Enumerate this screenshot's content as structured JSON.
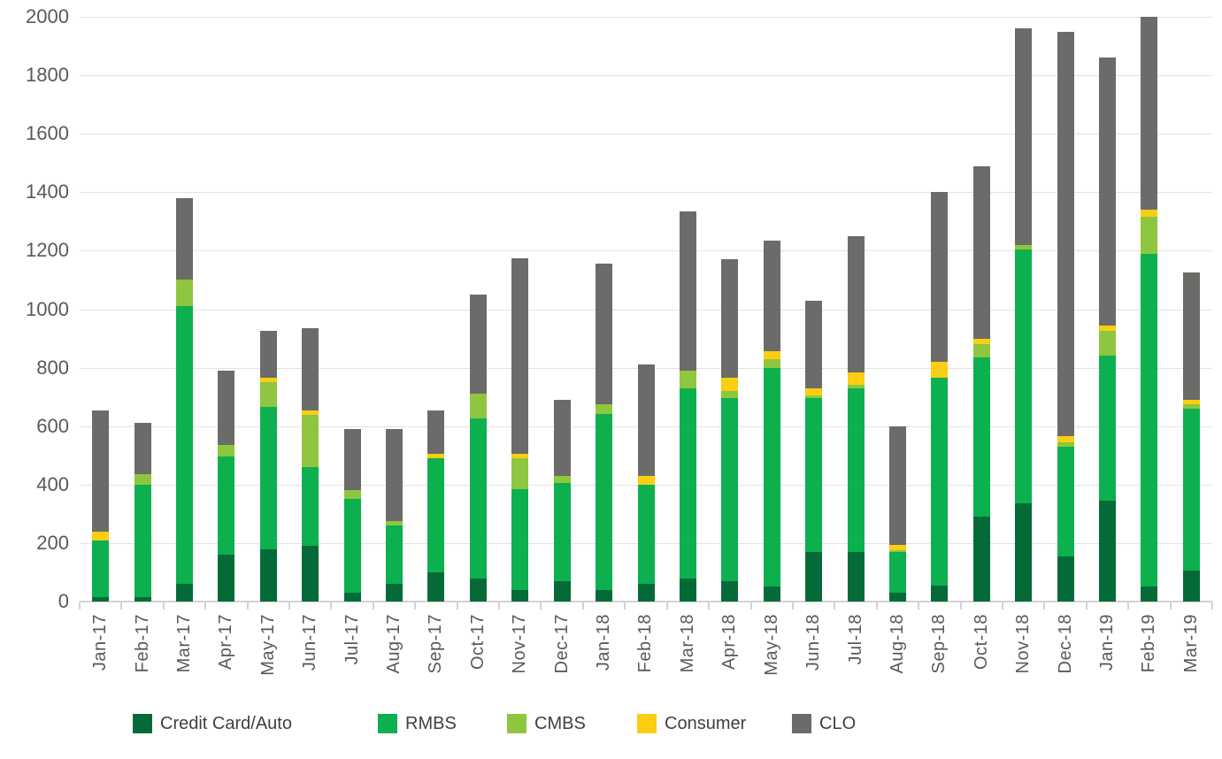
{
  "chart_data": {
    "type": "bar",
    "stacked": true,
    "title": "",
    "xlabel": "",
    "ylabel": "",
    "ylim": [
      0,
      2000
    ],
    "ytick_step": 200,
    "yticks": [
      0,
      200,
      400,
      600,
      800,
      1000,
      1200,
      1400,
      1600,
      1800,
      2000
    ],
    "grid": "horizontal",
    "legend_position": "bottom",
    "categories": [
      "Jan-17",
      "Feb-17",
      "Mar-17",
      "Apr-17",
      "May-17",
      "Jun-17",
      "Jul-17",
      "Aug-17",
      "Sep-17",
      "Oct-17",
      "Nov-17",
      "Dec-17",
      "Jan-18",
      "Feb-18",
      "Mar-18",
      "Apr-18",
      "May-18",
      "Jun-18",
      "Jul-18",
      "Aug-18",
      "Sep-18",
      "Oct-18",
      "Nov-18",
      "Dec-18",
      "Jan-19",
      "Feb-19",
      "Mar-19"
    ],
    "series": [
      {
        "name": "Credit Card/Auto",
        "color": "#046b38",
        "values": [
          15,
          15,
          60,
          160,
          180,
          190,
          30,
          60,
          100,
          80,
          40,
          70,
          40,
          60,
          80,
          70,
          50,
          170,
          170,
          30,
          55,
          290,
          335,
          155,
          345,
          50,
          105
        ]
      },
      {
        "name": "RMBS",
        "color": "#0cb04f",
        "values": [
          195,
          385,
          950,
          335,
          485,
          270,
          320,
          200,
          390,
          545,
          345,
          335,
          600,
          340,
          650,
          625,
          750,
          525,
          560,
          140,
          710,
          545,
          870,
          375,
          495,
          1140,
          555
        ]
      },
      {
        "name": "CMBS",
        "color": "#8fc640",
        "values": [
          0,
          35,
          90,
          40,
          85,
          180,
          30,
          15,
          0,
          85,
          105,
          25,
          35,
          0,
          60,
          25,
          30,
          10,
          10,
          5,
          0,
          45,
          15,
          15,
          85,
          125,
          15
        ]
      },
      {
        "name": "Consumer",
        "color": "#f9ce13",
        "values": [
          30,
          0,
          0,
          0,
          15,
          15,
          0,
          0,
          15,
          0,
          15,
          0,
          0,
          30,
          0,
          45,
          25,
          25,
          45,
          20,
          55,
          20,
          0,
          20,
          20,
          25,
          15
        ]
      },
      {
        "name": "CLO",
        "color": "#6b6b69",
        "values": [
          415,
          175,
          280,
          255,
          160,
          280,
          210,
          315,
          150,
          340,
          670,
          260,
          480,
          380,
          545,
          405,
          380,
          300,
          465,
          405,
          580,
          590,
          740,
          1385,
          915,
          660,
          435
        ]
      }
    ],
    "totals": [
      655,
      610,
      1380,
      790,
      925,
      935,
      590,
      590,
      655,
      1050,
      1175,
      690,
      1155,
      810,
      1335,
      1170,
      1235,
      1030,
      1250,
      600,
      1400,
      1490,
      1960,
      1950,
      1860,
      2000,
      1125
    ],
    "tick_label_color": "#595959",
    "legend_text_color": "#404040",
    "grid_color": "#e2e2e2",
    "axis_color": "#d2d2d2"
  }
}
